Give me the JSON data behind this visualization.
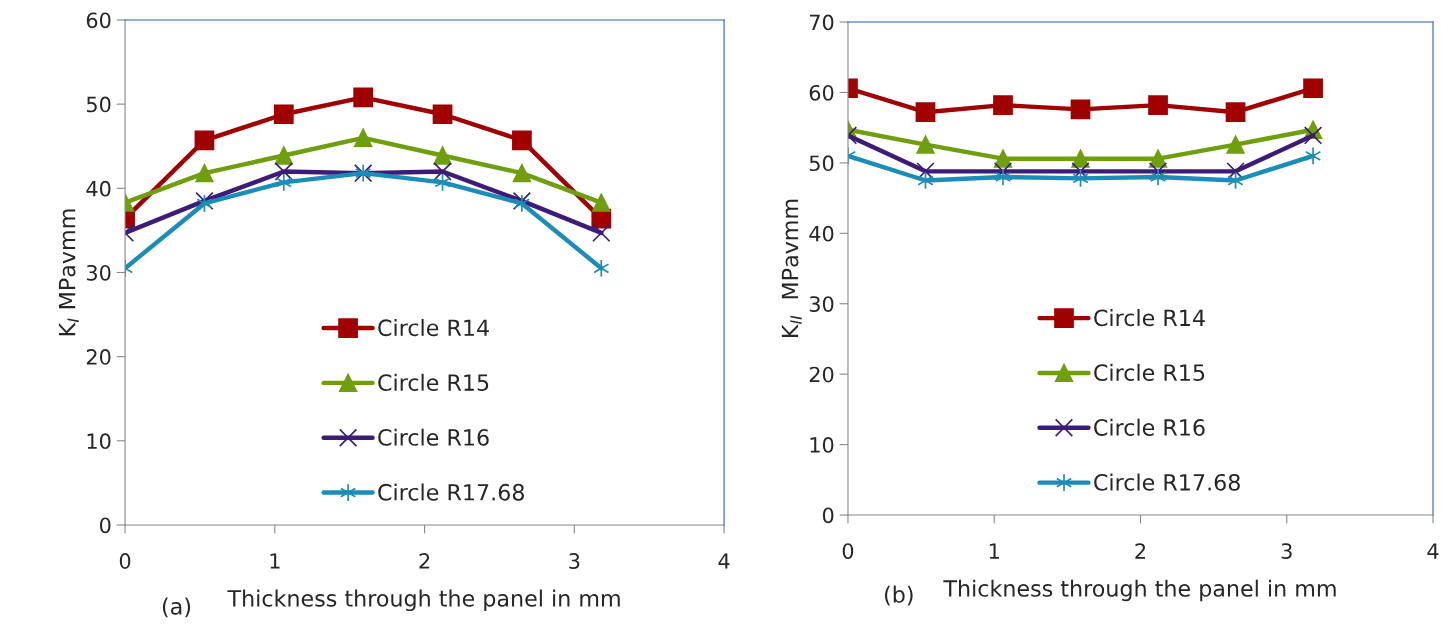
{
  "chart_data": [
    {
      "type": "line",
      "xlabel": "Thickness through the panel in mm",
      "ylabel": "K$_{I}$ MPavmm",
      "annotations": [
        "(a)"
      ],
      "x": [
        0,
        0.53,
        1.06,
        1.59,
        2.12,
        2.65,
        3.18
      ],
      "xlim": [
        0,
        4
      ],
      "xticks": [
        0,
        1,
        2,
        3,
        4
      ],
      "ylim": [
        0,
        60
      ],
      "yticks": [
        0,
        10,
        20,
        30,
        40,
        50,
        60
      ],
      "grid": false,
      "legend": "bottom",
      "line_style": "solid",
      "series": [
        {
          "name": "Circle R14",
          "color": "#a00000",
          "marker": "square",
          "values": [
            36.4,
            45.7,
            48.8,
            50.8,
            48.8,
            45.7,
            36.4
          ]
        },
        {
          "name": "Circle R15",
          "color": "#6f9f0f",
          "marker": "triangle",
          "values": [
            38.3,
            41.8,
            43.9,
            46.0,
            43.9,
            41.8,
            38.3
          ]
        },
        {
          "name": "Circle R16",
          "color": "#3d1c78",
          "marker": "cross",
          "values": [
            34.7,
            38.5,
            42.0,
            41.8,
            42.0,
            38.5,
            34.7
          ]
        },
        {
          "name": "Circle R17.68",
          "color": "#1b8db8",
          "marker": "cross",
          "values": [
            30.5,
            38.2,
            40.7,
            41.8,
            40.7,
            38.2,
            30.5
          ]
        }
      ]
    },
    {
      "type": "line",
      "xlabel": "Thickness through the panel in mm",
      "ylabel": "K$_{II}$  MPavmm",
      "annotations": [
        "(b)"
      ],
      "x": [
        0,
        0.53,
        1.06,
        1.59,
        2.12,
        2.65,
        3.18
      ],
      "xlim": [
        0,
        4
      ],
      "xticks": [
        0,
        1,
        2,
        3,
        4
      ],
      "ylim": [
        0,
        70
      ],
      "yticks": [
        0,
        10,
        20,
        30,
        40,
        50,
        60,
        70
      ],
      "grid": false,
      "legend": "bottom",
      "line_style": "solid",
      "series": [
        {
          "name": "Circle R14",
          "color": "#a00000",
          "marker": "square",
          "values": [
            60.6,
            57.2,
            58.2,
            57.6,
            58.2,
            57.2,
            60.6
          ]
        },
        {
          "name": "Circle R15",
          "color": "#6f9f0f",
          "marker": "triangle",
          "values": [
            54.7,
            52.6,
            50.6,
            50.6,
            50.6,
            52.6,
            54.7
          ]
        },
        {
          "name": "Circle R16",
          "color": "#3d1c78",
          "marker": "cross",
          "values": [
            53.9,
            48.8,
            48.8,
            48.8,
            48.8,
            48.8,
            53.9
          ]
        },
        {
          "name": "Circle R17.68",
          "color": "#1b8db8",
          "marker": "cross",
          "values": [
            51.0,
            47.5,
            48.0,
            47.8,
            48.0,
            47.5,
            51.0
          ]
        }
      ]
    }
  ]
}
